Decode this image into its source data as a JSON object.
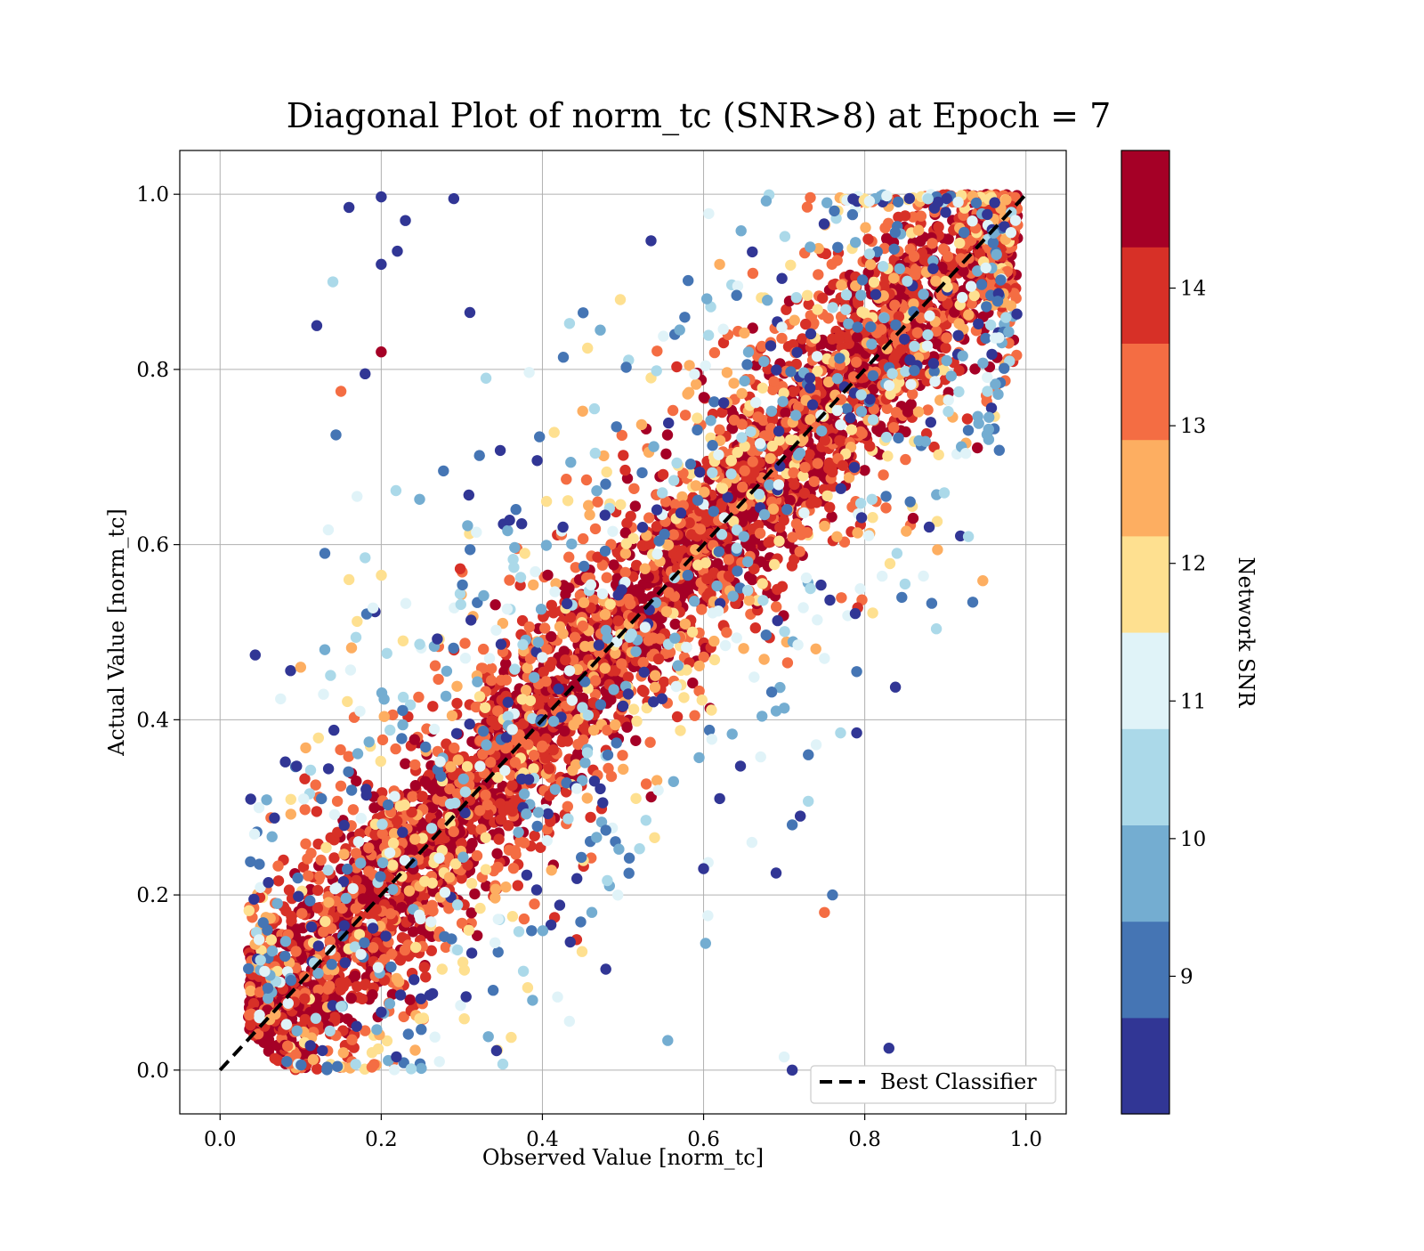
{
  "chart_data": {
    "type": "scatter",
    "title": "Diagonal Plot of norm_tc (SNR>8) at Epoch = 7",
    "xlabel": "Observed Value [norm_tc]",
    "ylabel": "Actual Value [norm_tc]",
    "xlim": [
      -0.05,
      1.05
    ],
    "ylim": [
      -0.05,
      1.05
    ],
    "x_ticks": [
      "0.0",
      "0.2",
      "0.4",
      "0.6",
      "0.8",
      "1.0"
    ],
    "y_ticks": [
      "0.0",
      "0.2",
      "0.4",
      "0.6",
      "0.8",
      "1.0"
    ],
    "grid": true,
    "legend": {
      "position": "lower-right",
      "entries": [
        "Best Classifier"
      ]
    },
    "reference_line": {
      "label": "Best Classifier",
      "style": "dashed",
      "color": "#000000",
      "x": [
        0,
        1
      ],
      "y": [
        0,
        1
      ]
    },
    "colorbar": {
      "label": "Network SNR",
      "range": [
        8,
        15
      ],
      "ticks": [
        "9",
        "10",
        "11",
        "12",
        "13",
        "14"
      ],
      "colors": [
        "#313695",
        "#4575b4",
        "#74add1",
        "#abd9e9",
        "#e0f3f8",
        "#fee090",
        "#fdae61",
        "#f46d43",
        "#d73027",
        "#a50026"
      ]
    },
    "series": [
      {
        "marker": "circle",
        "color_by": "Network SNR",
        "points": [
          {
            "x": 0.16,
            "y": 0.985,
            "snr": 8.3
          },
          {
            "x": 0.2,
            "y": 0.997,
            "snr": 8.4
          },
          {
            "x": 0.23,
            "y": 0.97,
            "snr": 8.3
          },
          {
            "x": 0.2,
            "y": 0.92,
            "snr": 8.4
          },
          {
            "x": 0.22,
            "y": 0.935,
            "snr": 8.2
          },
          {
            "x": 0.14,
            "y": 0.9,
            "snr": 10.6
          },
          {
            "x": 0.12,
            "y": 0.85,
            "snr": 8.3
          },
          {
            "x": 0.2,
            "y": 0.82,
            "snr": 14.8
          },
          {
            "x": 0.18,
            "y": 0.795,
            "snr": 8.4
          },
          {
            "x": 0.15,
            "y": 0.775,
            "snr": 13.2
          },
          {
            "x": 0.29,
            "y": 0.995,
            "snr": 8.6
          },
          {
            "x": 0.31,
            "y": 0.865,
            "snr": 8.3
          },
          {
            "x": 0.33,
            "y": 0.79,
            "snr": 10.4
          },
          {
            "x": 0.17,
            "y": 0.655,
            "snr": 11.2
          },
          {
            "x": 0.16,
            "y": 0.56,
            "snr": 12.2
          },
          {
            "x": 0.18,
            "y": 0.585,
            "snr": 10.3
          },
          {
            "x": 0.13,
            "y": 0.59,
            "snr": 8.8
          },
          {
            "x": 0.1,
            "y": 0.46,
            "snr": 12.6
          },
          {
            "x": 0.13,
            "y": 0.48,
            "snr": 9.4
          },
          {
            "x": 0.76,
            "y": 0.2,
            "snr": 9.3
          },
          {
            "x": 0.75,
            "y": 0.18,
            "snr": 13.2
          },
          {
            "x": 0.83,
            "y": 0.025,
            "snr": 8.3
          },
          {
            "x": 0.7,
            "y": 0.015,
            "snr": 11.3
          },
          {
            "x": 0.71,
            "y": 0.0,
            "snr": 8.3
          },
          {
            "x": 0.85,
            "y": 0.555,
            "snr": 10.2
          },
          {
            "x": 0.84,
            "y": 0.59,
            "snr": 10.5
          },
          {
            "x": 0.79,
            "y": 0.385,
            "snr": 8.3
          },
          {
            "x": 0.79,
            "y": 0.455,
            "snr": 9.1
          },
          {
            "x": 0.77,
            "y": 0.385,
            "snr": 10.5
          },
          {
            "x": 0.73,
            "y": 0.36,
            "snr": 9.0
          },
          {
            "x": 0.72,
            "y": 0.29,
            "snr": 8.3
          },
          {
            "x": 0.71,
            "y": 0.28,
            "snr": 9.0
          },
          {
            "x": 0.69,
            "y": 0.225,
            "snr": 8.3
          },
          {
            "x": 0.66,
            "y": 0.26,
            "snr": 11.0
          },
          {
            "x": 0.62,
            "y": 0.31,
            "snr": 8.4
          },
          {
            "x": 0.6,
            "y": 0.23,
            "snr": 8.2
          },
          {
            "x": 0.88,
            "y": 0.62,
            "snr": 8.2
          },
          {
            "x": 0.86,
            "y": 0.63,
            "snr": 14.9
          },
          {
            "x": 0.75,
            "y": 0.47,
            "snr": 11.3
          },
          {
            "x": 0.69,
            "y": 0.41,
            "snr": 9.5
          }
        ]
      }
    ]
  }
}
